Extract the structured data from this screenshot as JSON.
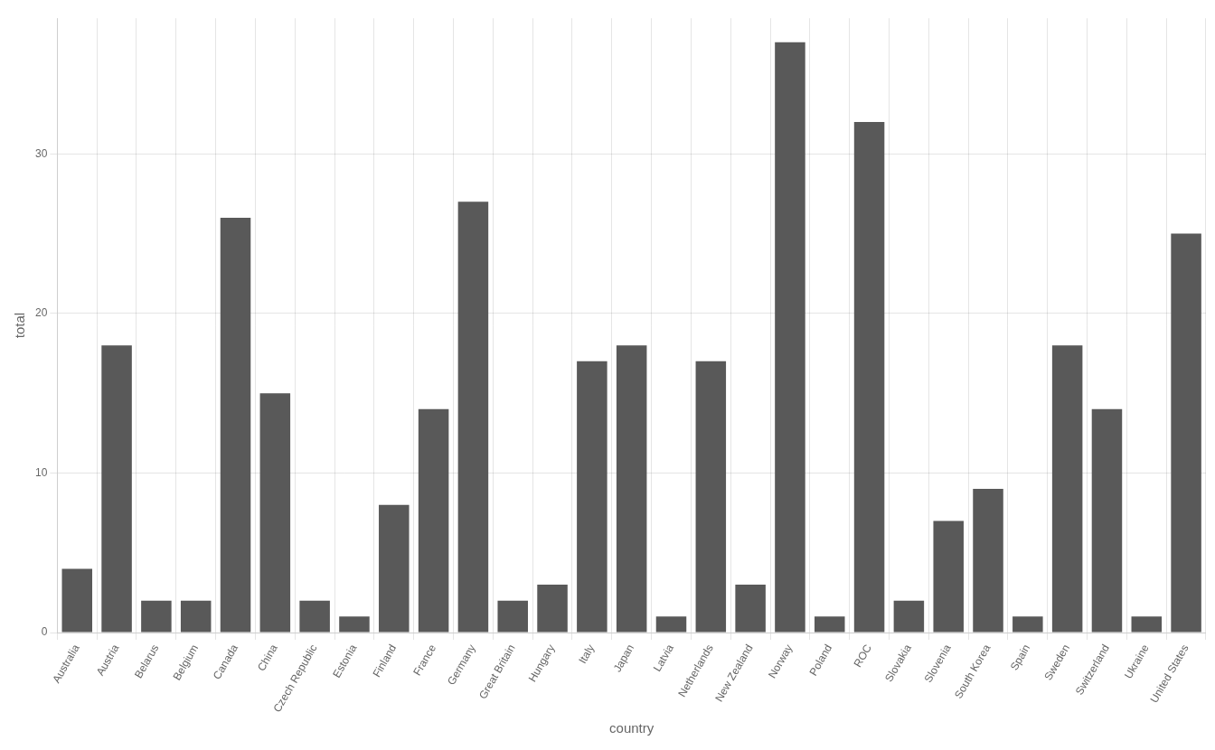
{
  "chart_data": {
    "type": "bar",
    "categories": [
      "Australia",
      "Austria",
      "Belarus",
      "Belgium",
      "Canada",
      "China",
      "Czech Republic",
      "Estonia",
      "Finland",
      "France",
      "Germany",
      "Great Britain",
      "Hungary",
      "Italy",
      "Japan",
      "Latvia",
      "Netherlands",
      "New Zealand",
      "Norway",
      "Poland",
      "ROC",
      "Slovakia",
      "Slovenia",
      "South Korea",
      "Spain",
      "Sweden",
      "Switzerland",
      "Ukraine",
      "United States"
    ],
    "values": [
      4,
      18,
      2,
      2,
      26,
      15,
      2,
      1,
      8,
      14,
      27,
      2,
      3,
      17,
      18,
      1,
      17,
      3,
      37,
      1,
      32,
      2,
      7,
      9,
      1,
      18,
      14,
      1,
      25
    ],
    "color": "#595959",
    "xlabel": "country",
    "ylabel": "total",
    "ylim": [
      0,
      38.5
    ],
    "yticks": [
      0,
      10,
      20,
      30
    ],
    "grid": true
  }
}
